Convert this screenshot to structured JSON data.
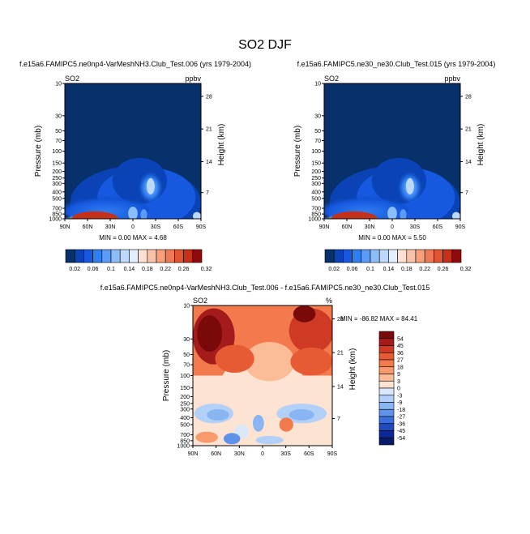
{
  "main_title": "SO2 DJF",
  "chart_data": [
    {
      "type": "heatmap",
      "title": "f.e15a6.FAMIPC5.ne0np4-VarMeshNH3.Club_Test.006 (yrs 1979-2004)",
      "left_label": "SO2",
      "right_label": "ppbv",
      "ylabel": "Pressure (mb)",
      "y2label": "Height (km)",
      "x_ticks": [
        "90N",
        "60N",
        "30N",
        "0",
        "30S",
        "60S",
        "90S"
      ],
      "y_ticks": [
        "10",
        "30",
        "50",
        "70",
        "100",
        "150",
        "200",
        "250",
        "300",
        "400",
        "500",
        "700",
        "850",
        "1000"
      ],
      "y2_ticks": [
        "28",
        "21",
        "14",
        "7"
      ],
      "stats": "MIN =   0.00  MAX =   4.68",
      "colorbar_ticks": [
        "0.02",
        "0.06",
        "0.1",
        "0.14",
        "0.18",
        "0.22",
        "0.26",
        "0.32"
      ]
    },
    {
      "type": "heatmap",
      "title": "f.e15a6.FAMIPC5.ne30_ne30.Club_Test.015 (yrs 1979-2004)",
      "left_label": "SO2",
      "right_label": "ppbv",
      "ylabel": "Pressure (mb)",
      "y2label": "Height (km)",
      "x_ticks": [
        "90N",
        "60N",
        "30N",
        "0",
        "30S",
        "60S",
        "90S"
      ],
      "y_ticks": [
        "10",
        "30",
        "50",
        "70",
        "100",
        "150",
        "200",
        "250",
        "300",
        "400",
        "500",
        "700",
        "850",
        "1000"
      ],
      "y2_ticks": [
        "28",
        "21",
        "14",
        "7"
      ],
      "stats": "MIN =   0.00  MAX =   5.50",
      "colorbar_ticks": [
        "0.02",
        "0.06",
        "0.1",
        "0.14",
        "0.18",
        "0.22",
        "0.26",
        "0.32"
      ]
    },
    {
      "type": "heatmap",
      "title": "f.e15a6.FAMIPC5.ne0np4-VarMeshNH3.Club_Test.006 - f.e15a6.FAMIPC5.ne30_ne30.Club_Test.015",
      "left_label": "SO2",
      "right_label": "%",
      "ylabel": "Pressure (mb)",
      "y2label": "Height (km)",
      "x_ticks": [
        "90N",
        "60N",
        "30N",
        "0",
        "30S",
        "60S",
        "90S"
      ],
      "y_ticks": [
        "10",
        "30",
        "50",
        "70",
        "100",
        "150",
        "200",
        "250",
        "300",
        "400",
        "500",
        "700",
        "850",
        "1000"
      ],
      "y2_ticks": [
        "28",
        "21",
        "14",
        "7"
      ],
      "stats": "MIN = -86.82  MAX =  84.41",
      "colorbar_ticks": [
        "54",
        "45",
        "36",
        "27",
        "18",
        "9",
        "3",
        "0",
        "-3",
        "-9",
        "-18",
        "-27",
        "-36",
        "-45",
        "-54"
      ]
    }
  ],
  "colors": {
    "seq_palette": [
      "#08306b",
      "#0a43b5",
      "#1659e0",
      "#2f7ef0",
      "#5a9cf5",
      "#8dbdf8",
      "#bcd8fb",
      "#e4effd",
      "#fde0d2",
      "#fbc2a8",
      "#f7a07e",
      "#ef7b55",
      "#e0542e",
      "#c4301a",
      "#8e0b0b"
    ],
    "diff_palette": [
      "#7a0a0a",
      "#a51b1b",
      "#cf3a24",
      "#e65b33",
      "#f27a4c",
      "#f99a6e",
      "#fcbc97",
      "#fde3d2",
      "#d9e8fb",
      "#b3d0f8",
      "#8ab5f3",
      "#5f93eb",
      "#3b6fdc",
      "#1f4ac0",
      "#0c2896",
      "#061a6b"
    ]
  }
}
